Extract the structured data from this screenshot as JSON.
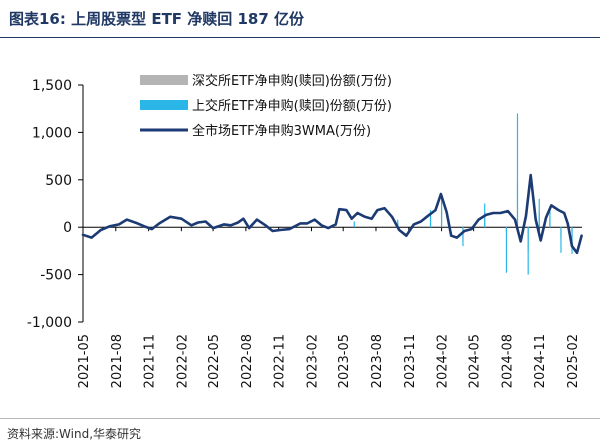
{
  "title": "图表16:  上周股票型 ETF 净赎回 187 亿份",
  "source": "资料来源:Wind,华泰研究",
  "chart_data": {
    "type": "line",
    "title": "",
    "xlabel": "",
    "ylabel": "",
    "ylim": [
      -1000,
      1500
    ],
    "yticks": [
      1500,
      1000,
      500,
      0,
      -500,
      -1000
    ],
    "ytick_labels": [
      "1,500",
      "1,000",
      "500",
      "0",
      "-500",
      "-1,000"
    ],
    "xlim": [
      "2021-05",
      "2025-03"
    ],
    "x_tick_labels": [
      "2021-05",
      "2021-08",
      "2021-11",
      "2022-02",
      "2022-05",
      "2022-08",
      "2022-11",
      "2023-02",
      "2023-05",
      "2023-08",
      "2023-11",
      "2024-02",
      "2024-05",
      "2024-08",
      "2024-11",
      "2025-02"
    ],
    "grid": false,
    "legend_position": "top-right",
    "series": [
      {
        "name": "深交所ETF净申购(赎回)份额(万份)",
        "kind": "bar",
        "color": "#b4b4b4",
        "x": [
          "2023-10",
          "2024-01",
          "2024-02",
          "2024-04",
          "2024-06",
          "2024-08",
          "2024-09",
          "2024-10",
          "2024-11",
          "2024-12",
          "2025-01",
          "2025-02"
        ],
        "values": [
          50,
          120,
          200,
          -130,
          160,
          -60,
          470,
          -260,
          150,
          100,
          -120,
          -200
        ]
      },
      {
        "name": "上交所ETF净申购(赎回)份额(万份)",
        "kind": "bar",
        "color": "#2ab7e8",
        "x": [
          "2023-06",
          "2023-10",
          "2024-01",
          "2024-02",
          "2024-04",
          "2024-06",
          "2024-08",
          "2024-09",
          "2024-10",
          "2024-11",
          "2024-12",
          "2025-01",
          "2025-02"
        ],
        "values": [
          60,
          80,
          180,
          300,
          -200,
          250,
          -480,
          1200,
          -500,
          300,
          210,
          -270,
          -280
        ]
      },
      {
        "name": "全市场ETF净申购3WMA(万份)",
        "kind": "line",
        "color": "#1c3a73",
        "points": [
          [
            "2021-05-01",
            -80
          ],
          [
            "2021-05-25",
            -110
          ],
          [
            "2021-06-20",
            -30
          ],
          [
            "2021-07-15",
            10
          ],
          [
            "2021-08-10",
            30
          ],
          [
            "2021-09-01",
            80
          ],
          [
            "2021-10-01",
            40
          ],
          [
            "2021-10-20",
            10
          ],
          [
            "2021-11-10",
            -20
          ],
          [
            "2021-12-01",
            40
          ],
          [
            "2022-01-01",
            110
          ],
          [
            "2022-02-01",
            90
          ],
          [
            "2022-03-01",
            20
          ],
          [
            "2022-03-20",
            50
          ],
          [
            "2022-04-10",
            60
          ],
          [
            "2022-05-01",
            -10
          ],
          [
            "2022-06-01",
            30
          ],
          [
            "2022-06-20",
            20
          ],
          [
            "2022-07-10",
            50
          ],
          [
            "2022-07-25",
            90
          ],
          [
            "2022-08-10",
            -10
          ],
          [
            "2022-09-01",
            80
          ],
          [
            "2022-09-25",
            20
          ],
          [
            "2022-10-15",
            -40
          ],
          [
            "2022-11-05",
            -30
          ],
          [
            "2022-12-01",
            -20
          ],
          [
            "2023-01-01",
            40
          ],
          [
            "2023-01-20",
            40
          ],
          [
            "2023-02-10",
            80
          ],
          [
            "2023-03-01",
            20
          ],
          [
            "2023-03-20",
            -10
          ],
          [
            "2023-04-10",
            30
          ],
          [
            "2023-04-20",
            190
          ],
          [
            "2023-05-10",
            180
          ],
          [
            "2023-05-25",
            90
          ],
          [
            "2023-06-10",
            150
          ],
          [
            "2023-07-01",
            110
          ],
          [
            "2023-07-20",
            90
          ],
          [
            "2023-08-05",
            180
          ],
          [
            "2023-08-25",
            200
          ],
          [
            "2023-09-15",
            110
          ],
          [
            "2023-10-05",
            -30
          ],
          [
            "2023-10-25",
            -90
          ],
          [
            "2023-11-15",
            30
          ],
          [
            "2023-12-05",
            60
          ],
          [
            "2023-12-25",
            120
          ],
          [
            "2024-01-15",
            180
          ],
          [
            "2024-01-30",
            350
          ],
          [
            "2024-02-15",
            160
          ],
          [
            "2024-02-28",
            -90
          ],
          [
            "2024-03-15",
            -110
          ],
          [
            "2024-04-05",
            -40
          ],
          [
            "2024-04-25",
            -20
          ],
          [
            "2024-05-15",
            80
          ],
          [
            "2024-06-05",
            130
          ],
          [
            "2024-06-25",
            150
          ],
          [
            "2024-07-15",
            150
          ],
          [
            "2024-08-05",
            170
          ],
          [
            "2024-08-25",
            80
          ],
          [
            "2024-09-10",
            -150
          ],
          [
            "2024-09-25",
            120
          ],
          [
            "2024-10-08",
            550
          ],
          [
            "2024-10-22",
            80
          ],
          [
            "2024-11-05",
            -140
          ],
          [
            "2024-11-20",
            100
          ],
          [
            "2024-12-05",
            230
          ],
          [
            "2024-12-25",
            180
          ],
          [
            "2025-01-10",
            150
          ],
          [
            "2025-01-20",
            40
          ],
          [
            "2025-02-01",
            -200
          ],
          [
            "2025-02-15",
            -270
          ],
          [
            "2025-02-28",
            -90
          ]
        ]
      }
    ]
  }
}
